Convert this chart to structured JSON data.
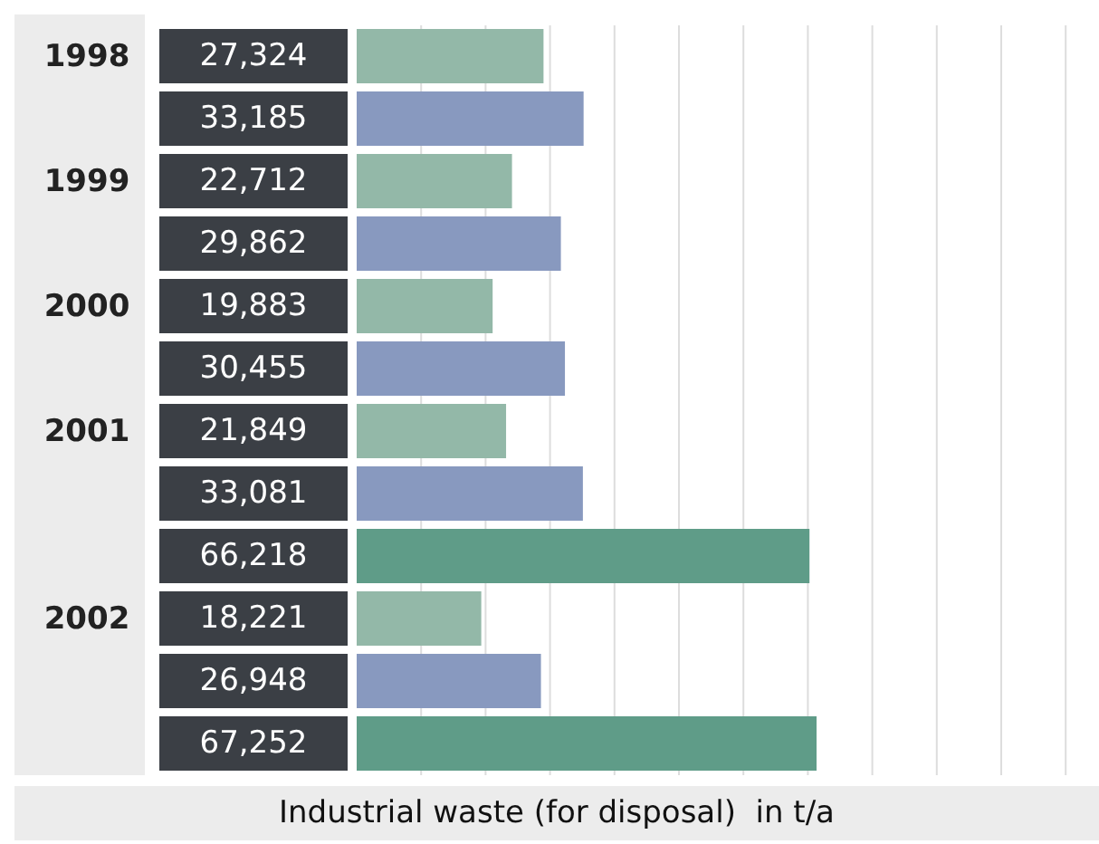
{
  "chart_data": {
    "type": "bar",
    "orientation": "horizontal",
    "xlabel": "Industrial waste (for disposal)  in t/a",
    "categories": [
      "1998",
      null,
      "1999",
      null,
      "2000",
      null,
      "2001",
      null,
      null,
      "2002",
      null,
      null
    ],
    "values": [
      27324,
      33185,
      22712,
      29862,
      19883,
      30455,
      21849,
      33081,
      66218,
      18221,
      26948,
      67252
    ],
    "value_labels": [
      "27,324",
      "33,185",
      "22,712",
      "29,862",
      "19,883",
      "30,455",
      "21,849",
      "33,081",
      "66,218",
      "18,221",
      "26,948",
      "67,252"
    ],
    "colors": [
      "#93b8a8",
      "#8899bf",
      "#93b8a8",
      "#8899bf",
      "#93b8a8",
      "#8899bf",
      "#93b8a8",
      "#8899bf",
      "#5f9c88",
      "#93b8a8",
      "#8899bf",
      "#5f9c88"
    ],
    "grid": "x",
    "tick_labels": "y"
  }
}
